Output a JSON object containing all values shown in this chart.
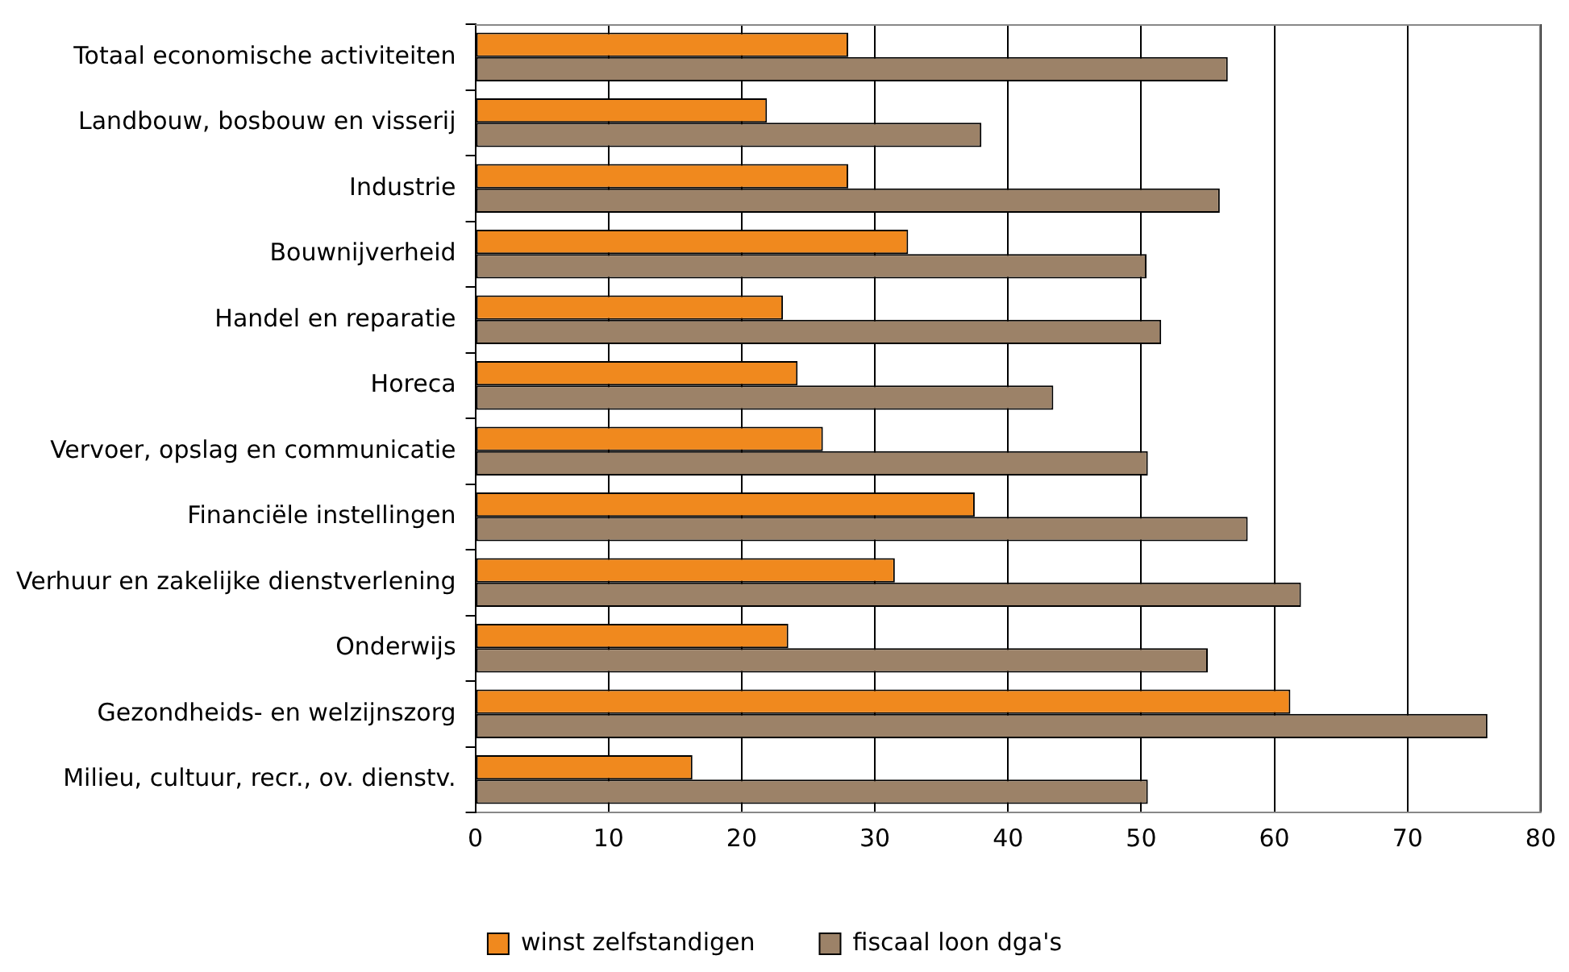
{
  "chart_data": {
    "type": "bar",
    "orientation": "horizontal",
    "categories": [
      "Totaal economische activiteiten",
      "Landbouw, bosbouw en visserij",
      "Industrie",
      "Bouwnijverheid",
      "Handel en reparatie",
      "Horeca",
      "Vervoer, opslag en communicatie",
      "Financiële instellingen",
      "Verhuur en zakelijke dienstverlening",
      "Onderwijs",
      "Gezondheids- en welzijnszorg",
      "Milieu, cultuur, recr., ov. dienstv."
    ],
    "series": [
      {
        "name": "winst zelfstandigen",
        "color": "#f0891e",
        "values": [
          28.0,
          21.9,
          28.0,
          32.5,
          23.1,
          24.2,
          26.1,
          37.5,
          31.5,
          23.5,
          61.2,
          16.3
        ]
      },
      {
        "name": "fiscaal loon dga's",
        "color": "#9c8268",
        "values": [
          56.5,
          38.0,
          55.9,
          50.4,
          51.5,
          43.4,
          50.5,
          58.0,
          62.0,
          55.0,
          76.0,
          50.5
        ]
      }
    ],
    "xlim": [
      0,
      80
    ],
    "xticks": [
      0,
      10,
      20,
      30,
      40,
      50,
      60,
      70,
      80
    ],
    "grid": "x",
    "legend": "bottom"
  }
}
